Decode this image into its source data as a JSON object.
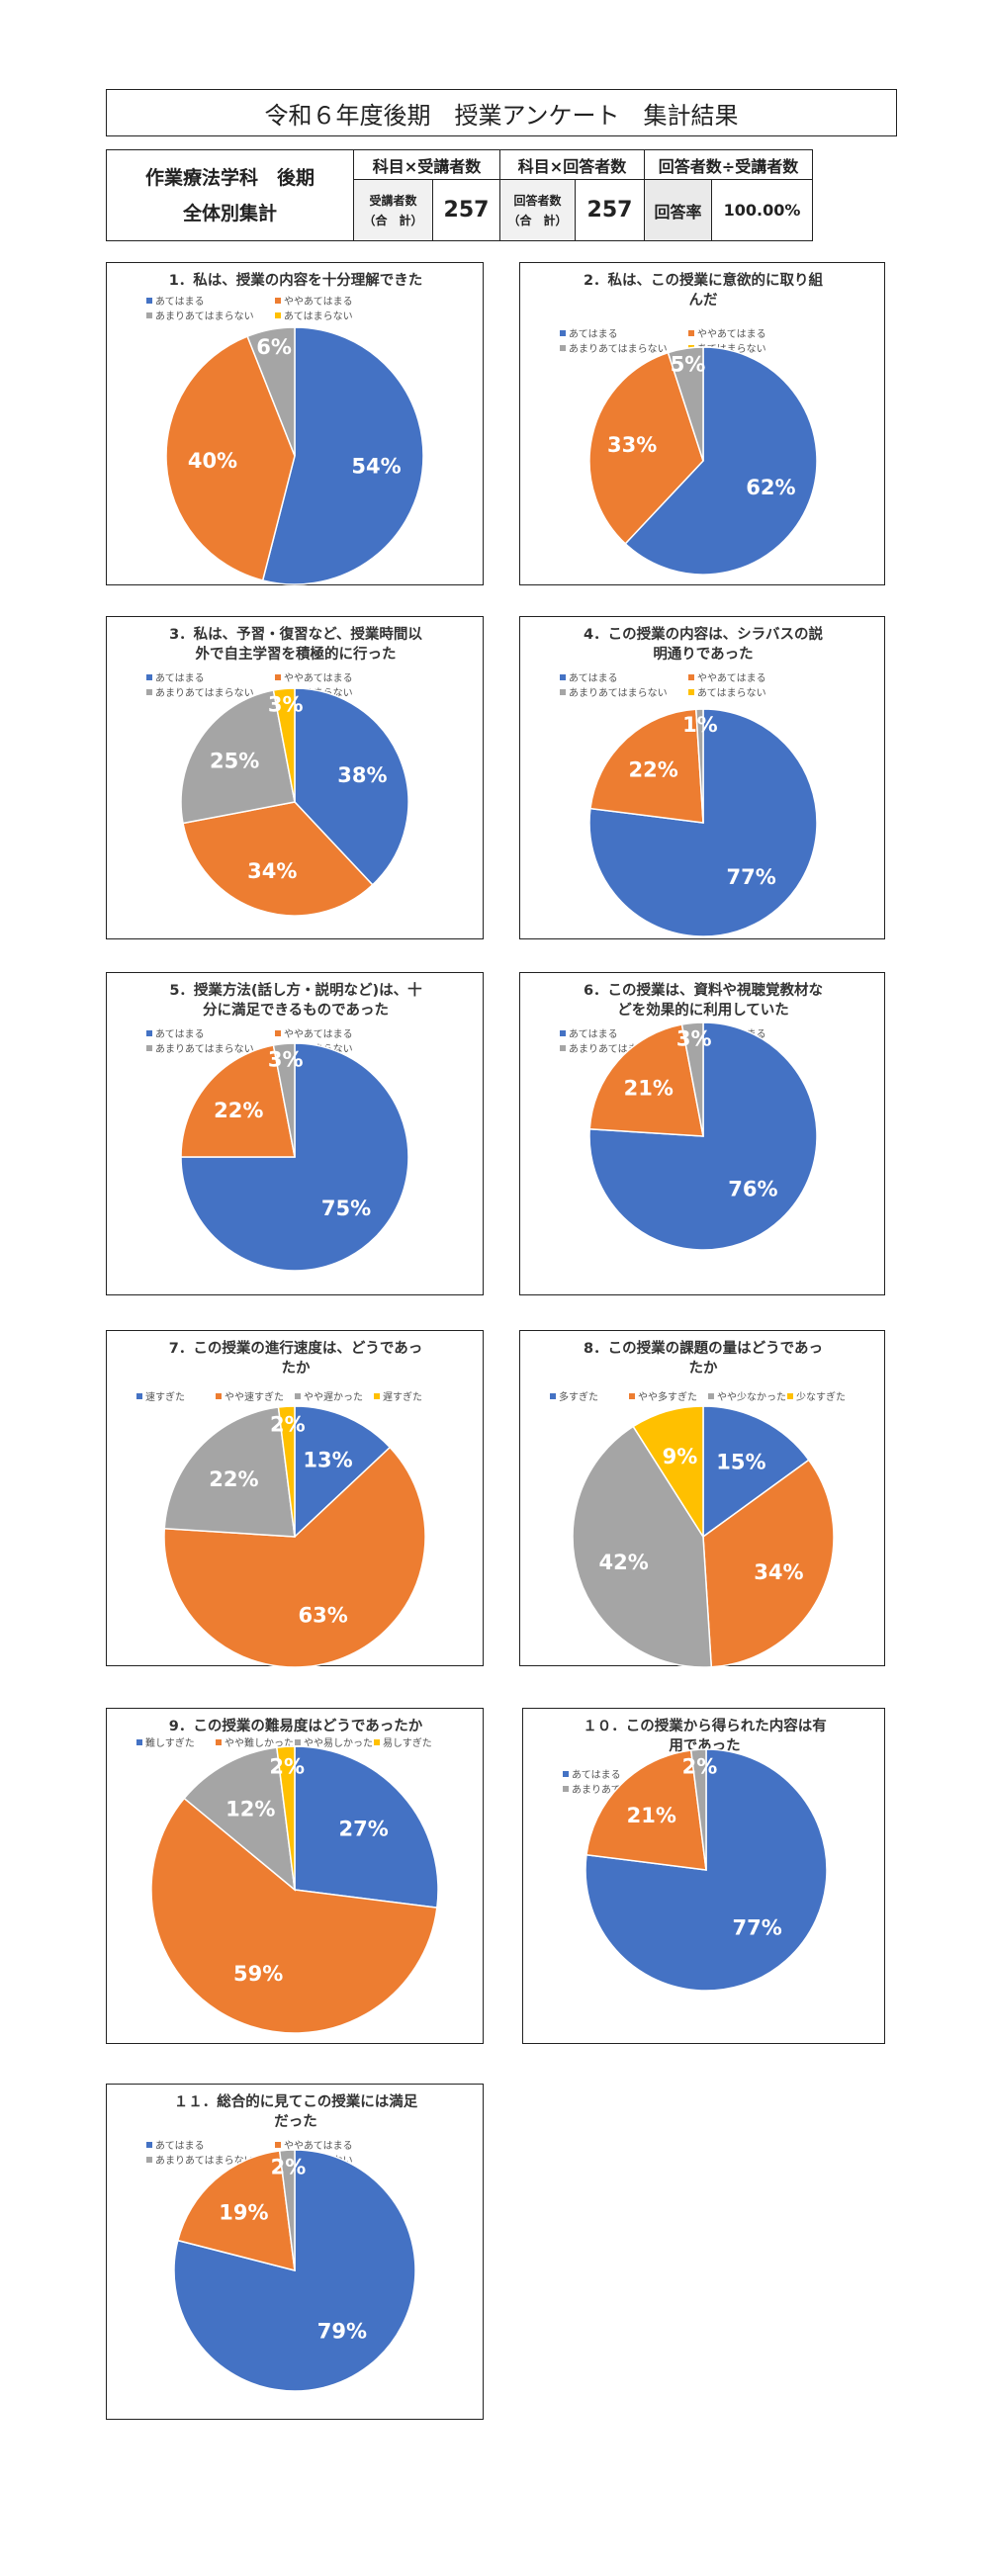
{
  "page_title": "令和６年度後期　授業アンケート　集計結果",
  "summary": {
    "dept_line1": "作業療法学科　後期",
    "dept_line2": "全体別集計",
    "header_students": "科目×受講者数",
    "header_respondents": "科目×回答者数",
    "header_rate": "回答者数÷受講者数",
    "students_label_1": "受講者数",
    "students_label_2": "（合　計）",
    "students_value": "257",
    "respondents_label_1": "回答者数",
    "respondents_label_2": "（合　計）",
    "respondents_value": "257",
    "rate_label": "回答率",
    "rate_value": "100.00%"
  },
  "colors": {
    "blue": "#4472c4",
    "orange": "#ed7d31",
    "gray": "#a5a5a5",
    "yellow": "#ffc000"
  },
  "chart_data": [
    {
      "type": "pie",
      "title": [
        "1．私は、授業の内容を十分理解できた"
      ],
      "categories": [
        "あてはまる",
        "ややあてはまる",
        "あまりあてはまらない",
        "あてはまらない"
      ],
      "values": [
        54,
        40,
        6,
        0
      ],
      "labels": [
        "54%",
        "40%",
        "6%",
        ""
      ],
      "legend": "top"
    },
    {
      "type": "pie",
      "title": [
        "2．私は、この授業に意欲的に取り組",
        "んだ"
      ],
      "categories": [
        "あてはまる",
        "ややあてはまる",
        "あまりあてはまらない",
        "あてはまらない"
      ],
      "values": [
        62,
        33,
        5,
        0
      ],
      "labels": [
        "62%",
        "33%",
        "5%",
        ""
      ],
      "legend": "top"
    },
    {
      "type": "pie",
      "title": [
        "3．私は、予習・復習など、授業時間以",
        "外で自主学習を積極的に行った"
      ],
      "categories": [
        "あてはまる",
        "ややあてはまる",
        "あまりあてはまらない",
        "あてはまらない"
      ],
      "values": [
        38,
        34,
        25,
        3
      ],
      "labels": [
        "38%",
        "34%",
        "25%",
        "3%"
      ],
      "legend": "top"
    },
    {
      "type": "pie",
      "title": [
        "4．この授業の内容は、シラバスの説",
        "明通りであった"
      ],
      "categories": [
        "あてはまる",
        "ややあてはまる",
        "あまりあてはまらない",
        "あてはまらない"
      ],
      "values": [
        77,
        22,
        1,
        0
      ],
      "labels": [
        "77%",
        "22%",
        "1%",
        ""
      ],
      "legend": "top"
    },
    {
      "type": "pie",
      "title": [
        "5．授業方法(話し方・説明など)は、十",
        "分に満足できるものであった"
      ],
      "categories": [
        "あてはまる",
        "ややあてはまる",
        "あまりあてはまらない",
        "あてはまらない"
      ],
      "values": [
        75,
        22,
        3,
        0
      ],
      "labels": [
        "75%",
        "22%",
        "3%",
        ""
      ],
      "legend": "top"
    },
    {
      "type": "pie",
      "title": [
        "6．この授業は、資料や視聴覚教材な",
        "どを効果的に利用していた"
      ],
      "categories": [
        "あてはまる",
        "ややあてはまる",
        "あまりあてはまらない",
        "あてはまらない"
      ],
      "values": [
        76,
        21,
        3,
        0
      ],
      "labels": [
        "76%",
        "21%",
        "3%",
        ""
      ],
      "legend": "top"
    },
    {
      "type": "pie",
      "title": [
        "7．この授業の進行速度は、どうであっ",
        "たか"
      ],
      "categories": [
        "速すぎた",
        "やや速すぎた",
        "やや遅かった",
        "遅すぎた"
      ],
      "values": [
        13,
        63,
        22,
        2
      ],
      "labels": [
        "13%",
        "63%",
        "22%",
        "2%"
      ],
      "legend": "top"
    },
    {
      "type": "pie",
      "title": [
        "8．この授業の課題の量はどうであっ",
        "たか"
      ],
      "categories": [
        "多すぎた",
        "やや多すぎた",
        "やや少なかった",
        "少なすぎた"
      ],
      "values": [
        15,
        34,
        42,
        9
      ],
      "labels": [
        "15%",
        "34%",
        "42%",
        "9%"
      ],
      "legend": "top"
    },
    {
      "type": "pie",
      "title": [
        "9．この授業の難易度はどうであったか"
      ],
      "categories": [
        "難しすぎた",
        "やや難しかった",
        "やや易しかった",
        "易しすぎた"
      ],
      "values": [
        27,
        59,
        12,
        2
      ],
      "labels": [
        "27%",
        "59%",
        "12%",
        "2%"
      ],
      "legend": "top"
    },
    {
      "type": "pie",
      "title": [
        "１０．この授業から得られた内容は有",
        "用であった"
      ],
      "categories": [
        "あてはまる",
        "ややあてはまる",
        "あまりあてはまらない",
        "あてはまらない"
      ],
      "values": [
        77,
        21,
        2,
        0
      ],
      "labels": [
        "77%",
        "21%",
        "2%",
        ""
      ],
      "legend": "top"
    },
    {
      "type": "pie",
      "title": [
        "１１．総合的に見てこの授業には満足",
        "だった"
      ],
      "categories": [
        "あてはまる",
        "ややあてはまる",
        "あまりあてはまらない",
        "あてはまらない"
      ],
      "values": [
        79,
        19,
        2,
        0
      ],
      "labels": [
        "79%",
        "19%",
        "2%",
        ""
      ],
      "legend": "top"
    }
  ]
}
